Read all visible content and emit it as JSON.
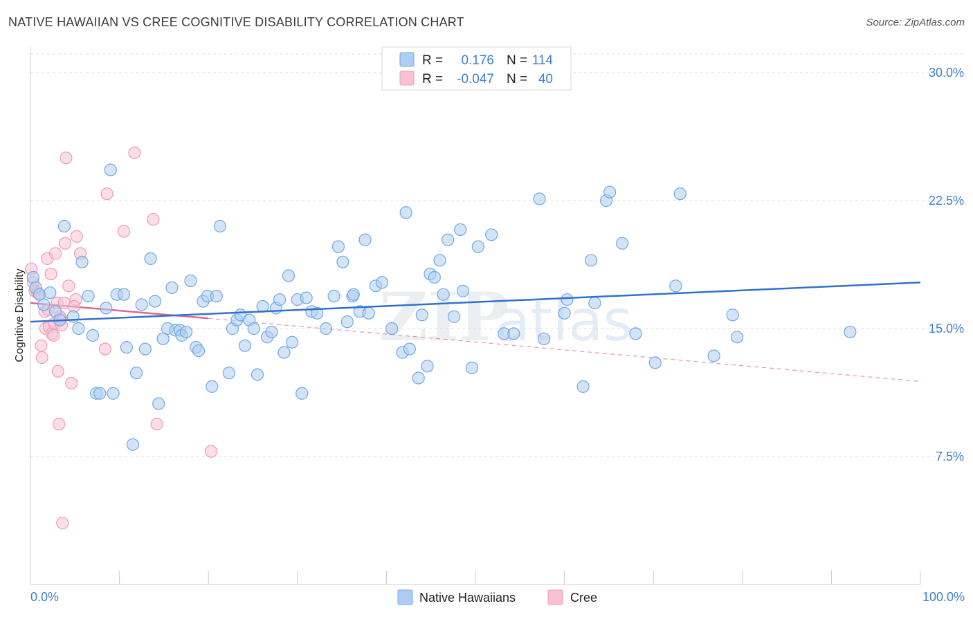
{
  "header": {
    "title": "NATIVE HAWAIIAN VS CREE COGNITIVE DISABILITY CORRELATION CHART",
    "source": "Source: ZipAtlas.com"
  },
  "colors": {
    "blue": "#6fa8e6",
    "blue_fill": "#aecdf2",
    "blue_line": "#2f72cc",
    "pink": "#ef9ab5",
    "pink_fill": "#f7c3d3",
    "pink_line": "#e0678f",
    "axis_text": "#3f7fd0",
    "grid": "#dddddd"
  },
  "legend": {
    "r_label": "R =",
    "n_label": "N =",
    "series": [
      {
        "name": "Native Hawaiians",
        "r": "0.176",
        "n": "114"
      },
      {
        "name": "Cree",
        "r": "-0.047",
        "n": "40"
      }
    ]
  },
  "watermark": {
    "zip": "ZIP",
    "atlas": "atlas"
  },
  "chart_data": {
    "type": "scatter",
    "title": "NATIVE HAWAIIAN VS CREE COGNITIVE DISABILITY CORRELATION CHART",
    "xlabel": "",
    "ylabel": "Cognitive Disability",
    "xlim": [
      0,
      100
    ],
    "ylim": [
      0,
      31.5
    ],
    "x_tick_labels": [
      "0.0%",
      "100.0%"
    ],
    "y_ticks": [
      7.5,
      15.0,
      22.5,
      30.0
    ],
    "y_tick_labels": [
      "7.5%",
      "15.0%",
      "22.5%",
      "30.0%"
    ],
    "grid": true,
    "legend_position": "top-center",
    "series": [
      {
        "name": "Native Hawaiians",
        "trend": {
          "x": [
            0,
            100
          ],
          "y": [
            15.4,
            17.7
          ],
          "dashed_extension": false
        },
        "points": [
          [
            0.3,
            18.0
          ],
          [
            0.6,
            17.4
          ],
          [
            1.0,
            17.0
          ],
          [
            1.5,
            16.4
          ],
          [
            2.2,
            17.1
          ],
          [
            2.8,
            16.0
          ],
          [
            3.3,
            15.5
          ],
          [
            3.8,
            21.0
          ],
          [
            4.8,
            15.7
          ],
          [
            5.4,
            15.0
          ],
          [
            5.8,
            18.9
          ],
          [
            6.5,
            16.9
          ],
          [
            7.0,
            14.6
          ],
          [
            7.4,
            11.2
          ],
          [
            7.8,
            11.2
          ],
          [
            8.5,
            16.2
          ],
          [
            9.0,
            24.3
          ],
          [
            9.3,
            11.2
          ],
          [
            9.7,
            17.0
          ],
          [
            10.5,
            17.0
          ],
          [
            10.8,
            13.9
          ],
          [
            11.5,
            8.2
          ],
          [
            11.9,
            12.4
          ],
          [
            12.5,
            16.4
          ],
          [
            12.9,
            13.8
          ],
          [
            13.5,
            19.1
          ],
          [
            14.0,
            16.6
          ],
          [
            14.4,
            10.6
          ],
          [
            14.9,
            14.4
          ],
          [
            15.4,
            15.0
          ],
          [
            15.9,
            17.4
          ],
          [
            16.3,
            14.9
          ],
          [
            16.8,
            14.9
          ],
          [
            17.0,
            14.6
          ],
          [
            17.5,
            14.8
          ],
          [
            18.0,
            17.8
          ],
          [
            18.6,
            13.9
          ],
          [
            18.9,
            13.7
          ],
          [
            19.4,
            16.6
          ],
          [
            19.9,
            16.9
          ],
          [
            20.4,
            11.6
          ],
          [
            20.9,
            16.9
          ],
          [
            21.3,
            21.0
          ],
          [
            22.3,
            12.4
          ],
          [
            22.7,
            15.0
          ],
          [
            23.2,
            15.5
          ],
          [
            23.6,
            15.8
          ],
          [
            24.1,
            14.0
          ],
          [
            24.6,
            15.5
          ],
          [
            25.1,
            15.0
          ],
          [
            25.5,
            12.3
          ],
          [
            26.1,
            16.3
          ],
          [
            26.6,
            14.5
          ],
          [
            27.1,
            14.8
          ],
          [
            27.6,
            16.2
          ],
          [
            28.0,
            16.7
          ],
          [
            28.5,
            13.6
          ],
          [
            29.0,
            18.1
          ],
          [
            29.4,
            14.2
          ],
          [
            30.0,
            16.7
          ],
          [
            30.5,
            11.2
          ],
          [
            31.0,
            16.8
          ],
          [
            31.6,
            16.0
          ],
          [
            32.2,
            15.9
          ],
          [
            33.2,
            15.0
          ],
          [
            34.1,
            16.9
          ],
          [
            34.6,
            19.8
          ],
          [
            35.1,
            18.9
          ],
          [
            35.6,
            15.4
          ],
          [
            36.2,
            16.9
          ],
          [
            37.0,
            16.0
          ],
          [
            37.6,
            20.2
          ],
          [
            38.0,
            15.9
          ],
          [
            38.8,
            17.5
          ],
          [
            39.5,
            17.7
          ],
          [
            40.6,
            15.0
          ],
          [
            41.8,
            13.6
          ],
          [
            42.2,
            21.8
          ],
          [
            42.6,
            13.8
          ],
          [
            43.6,
            12.1
          ],
          [
            44.0,
            15.8
          ],
          [
            44.6,
            12.8
          ],
          [
            44.9,
            18.2
          ],
          [
            45.4,
            18.0
          ],
          [
            46.0,
            19.0
          ],
          [
            46.4,
            17.0
          ],
          [
            46.9,
            20.2
          ],
          [
            47.6,
            15.7
          ],
          [
            48.3,
            20.8
          ],
          [
            49.6,
            12.7
          ],
          [
            50.3,
            19.8
          ],
          [
            51.8,
            20.5
          ],
          [
            53.2,
            14.7
          ],
          [
            54.3,
            14.7
          ],
          [
            57.2,
            22.6
          ],
          [
            57.7,
            14.4
          ],
          [
            60.0,
            15.9
          ],
          [
            60.3,
            16.7
          ],
          [
            62.1,
            11.6
          ],
          [
            63.0,
            19.0
          ],
          [
            63.4,
            16.5
          ],
          [
            64.7,
            22.5
          ],
          [
            65.1,
            23.0
          ],
          [
            66.5,
            20.0
          ],
          [
            68.0,
            14.7
          ],
          [
            70.2,
            13.0
          ],
          [
            72.5,
            17.5
          ],
          [
            73.0,
            22.9
          ],
          [
            76.8,
            13.4
          ],
          [
            78.9,
            15.8
          ],
          [
            79.4,
            14.5
          ],
          [
            92.1,
            14.8
          ],
          [
            48.6,
            17.2
          ],
          [
            36.3,
            17.0
          ]
        ]
      },
      {
        "name": "Cree",
        "trend": {
          "x": [
            0,
            20
          ],
          "y": [
            16.5,
            15.6
          ],
          "dashed_extension": {
            "x": [
              20,
              100
            ],
            "y": [
              15.6,
              11.9
            ]
          }
        },
        "points": [
          [
            0.1,
            18.5
          ],
          [
            0.3,
            17.7
          ],
          [
            0.5,
            17.2
          ],
          [
            0.8,
            17.1
          ],
          [
            1.2,
            14.0
          ],
          [
            1.3,
            13.3
          ],
          [
            1.6,
            16.0
          ],
          [
            1.7,
            15.0
          ],
          [
            1.9,
            19.1
          ],
          [
            2.1,
            15.1
          ],
          [
            2.3,
            18.2
          ],
          [
            2.4,
            14.7
          ],
          [
            2.6,
            14.6
          ],
          [
            2.7,
            15.3
          ],
          [
            2.8,
            19.4
          ],
          [
            3.0,
            16.5
          ],
          [
            3.1,
            12.5
          ],
          [
            3.2,
            9.4
          ],
          [
            3.4,
            15.6
          ],
          [
            3.5,
            15.2
          ],
          [
            3.6,
            3.6
          ],
          [
            3.8,
            16.5
          ],
          [
            3.9,
            20.0
          ],
          [
            4.0,
            25.0
          ],
          [
            4.3,
            17.5
          ],
          [
            4.6,
            11.8
          ],
          [
            5.1,
            16.7
          ],
          [
            5.2,
            20.4
          ],
          [
            5.6,
            19.4
          ],
          [
            8.4,
            13.8
          ],
          [
            8.6,
            22.9
          ],
          [
            10.5,
            20.7
          ],
          [
            11.7,
            25.3
          ],
          [
            13.8,
            21.4
          ],
          [
            14.2,
            9.4
          ],
          [
            20.3,
            7.8
          ],
          [
            2.0,
            16.1
          ],
          [
            1.0,
            17.0
          ],
          [
            3.3,
            15.7
          ],
          [
            4.9,
            16.3
          ]
        ]
      }
    ]
  }
}
